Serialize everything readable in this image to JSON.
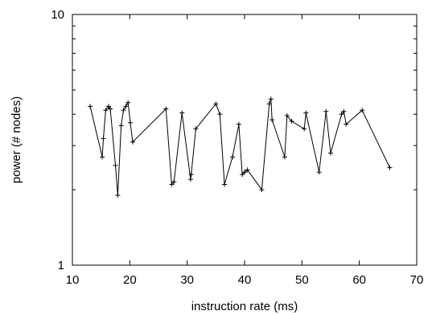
{
  "chart_data": {
    "type": "line",
    "title": "",
    "xlabel": "instruction rate (ms)",
    "ylabel": "power (# nodes)",
    "xlim": [
      10,
      70
    ],
    "ylim": [
      1,
      10
    ],
    "yscale": "log",
    "xticks": [
      10,
      20,
      30,
      40,
      50,
      60,
      70
    ],
    "yticks": [
      1,
      10
    ],
    "xtick_labels": [
      "10",
      "20",
      "30",
      "40",
      "50",
      "60",
      "70"
    ],
    "ytick_labels": [
      "1",
      "10"
    ],
    "grid": false,
    "legend": "none",
    "marker": "+",
    "line_color": "#000000",
    "series": [
      {
        "x": [
          13.1,
          15.2,
          15.4,
          15.8,
          16.3,
          16.6,
          17.5,
          17.9,
          18.5,
          18.9,
          19.3,
          19.7,
          20.1,
          20.5,
          26.3,
          27.3,
          27.7,
          29.1,
          30.6,
          30.7,
          31.5,
          35.0,
          35.7,
          36.5,
          37.9,
          39.0,
          39.6,
          40.0,
          40.5,
          43.0,
          44.3,
          44.6,
          44.8,
          47.0,
          47.4,
          48.2,
          50.4,
          50.7,
          53.0,
          54.2,
          55.0,
          56.9,
          57.3,
          57.7,
          60.5,
          65.3
        ],
        "y": [
          4.3,
          2.7,
          3.2,
          4.15,
          4.3,
          4.2,
          2.5,
          1.9,
          3.6,
          4.15,
          4.3,
          4.45,
          3.7,
          3.1,
          4.2,
          2.1,
          2.15,
          4.05,
          2.2,
          2.3,
          3.5,
          4.4,
          4.0,
          2.1,
          2.7,
          3.65,
          2.3,
          2.35,
          2.4,
          2.0,
          4.4,
          4.6,
          3.8,
          2.7,
          3.95,
          3.75,
          3.5,
          4.05,
          2.35,
          4.1,
          2.8,
          4.0,
          4.1,
          3.65,
          4.15,
          2.45
        ]
      }
    ]
  }
}
